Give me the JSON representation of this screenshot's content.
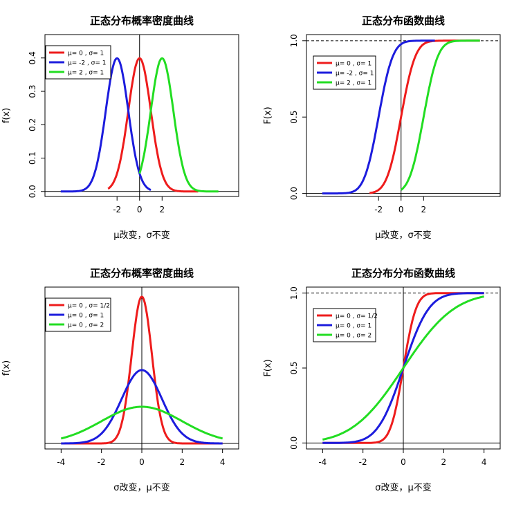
{
  "chart_data": [
    {
      "type": "line",
      "title": "正态分布概率密度曲线",
      "xlabel": "μ改变，σ不变",
      "ylabel": "f(x)",
      "function": "pdf",
      "xlim": [
        -8.4,
        8.8
      ],
      "ylim": [
        -0.015,
        0.47
      ],
      "x_ticks": [
        -2,
        0,
        2
      ],
      "y_ticks": [
        0.0,
        0.1,
        0.2,
        0.3,
        0.4
      ],
      "y_tick_labels": [
        "0.0",
        "0.1",
        "0.2",
        "0.3",
        "0.4"
      ],
      "hline": 0,
      "vline": 0,
      "dashed_hline": null,
      "legend_position": "top-left",
      "series": [
        {
          "name": "μ= 0 , σ= 1",
          "mu": 0,
          "sigma": 1,
          "x_range": [
            -2.8,
            5.2
          ],
          "color": "#ee1c1c"
        },
        {
          "name": "μ= -2 , σ= 1",
          "mu": -2,
          "sigma": 1,
          "x_range": [
            -7.0,
            1.0
          ],
          "color": "#1c1cdd"
        },
        {
          "name": "μ= 2 , σ= 1",
          "mu": 2,
          "sigma": 1,
          "x_range": [
            0.0,
            7.0
          ],
          "color": "#22dd22"
        }
      ]
    },
    {
      "type": "line",
      "title": "正态分布函数曲线",
      "xlabel": "μ改变，σ不变",
      "ylabel": "F(x)",
      "function": "cdf",
      "xlim": [
        -8.4,
        8.8
      ],
      "ylim": [
        -0.02,
        1.04
      ],
      "x_ticks": [
        -2,
        0,
        2
      ],
      "y_ticks": [
        0.0,
        0.5,
        1.0
      ],
      "y_tick_labels": [
        "0.0",
        "0.5",
        "1.0"
      ],
      "hline": 0,
      "vline": 0,
      "dashed_hline": 1,
      "legend_position": "top-left",
      "series": [
        {
          "name": "μ= 0 , σ= 1",
          "mu": 0,
          "sigma": 1,
          "x_range": [
            -2.8,
            7.0
          ],
          "color": "#ee1c1c"
        },
        {
          "name": "μ= -2 , σ= 1",
          "mu": -2,
          "sigma": 1,
          "x_range": [
            -7.0,
            3.0
          ],
          "color": "#1c1cdd"
        },
        {
          "name": "μ= 2 , σ= 1",
          "mu": 2,
          "sigma": 1,
          "x_range": [
            0.0,
            7.0
          ],
          "color": "#22dd22"
        }
      ]
    },
    {
      "type": "line",
      "title": "正态分布概率密度曲线",
      "xlabel": "σ改变，μ不变",
      "ylabel": "f(x)",
      "function": "pdf",
      "xlim": [
        -4.8,
        4.8
      ],
      "ylim": [
        -0.03,
        0.85
      ],
      "x_ticks": [
        -4,
        -2,
        0,
        2,
        4
      ],
      "y_ticks": [],
      "y_tick_labels": [],
      "hline": 0,
      "vline": 0,
      "dashed_hline": null,
      "legend_position": "top-left",
      "series": [
        {
          "name": "μ= 0 , σ= 1/2",
          "mu": 0,
          "sigma": 0.5,
          "x_range": [
            -4,
            4
          ],
          "color": "#ee1c1c"
        },
        {
          "name": "μ= 0 , σ= 1",
          "mu": 0,
          "sigma": 1,
          "x_range": [
            -4,
            4
          ],
          "color": "#1c1cdd"
        },
        {
          "name": "μ= 0 , σ= 2",
          "mu": 0,
          "sigma": 2,
          "x_range": [
            -4,
            4
          ],
          "color": "#22dd22"
        }
      ]
    },
    {
      "type": "line",
      "title": "正态分布分布函数曲线",
      "xlabel": "σ改变，μ不变",
      "ylabel": "F(x)",
      "function": "cdf",
      "xlim": [
        -4.8,
        4.8
      ],
      "ylim": [
        -0.04,
        1.04
      ],
      "x_ticks": [
        -4,
        -2,
        0,
        2,
        4
      ],
      "y_ticks": [
        0.0,
        0.5,
        1.0
      ],
      "y_tick_labels": [
        "0.0",
        "0.5",
        "1.0"
      ],
      "hline": 0,
      "vline": 0,
      "dashed_hline": 1,
      "legend_position": "top-left",
      "series": [
        {
          "name": "μ= 0 , σ= 1/2",
          "mu": 0,
          "sigma": 0.5,
          "x_range": [
            -4,
            4
          ],
          "color": "#ee1c1c"
        },
        {
          "name": "μ= 0 , σ= 1",
          "mu": 0,
          "sigma": 1,
          "x_range": [
            -4,
            4
          ],
          "color": "#1c1cdd"
        },
        {
          "name": "μ= 0 , σ= 2",
          "mu": 0,
          "sigma": 2,
          "x_range": [
            -4,
            4
          ],
          "color": "#22dd22"
        }
      ]
    }
  ]
}
